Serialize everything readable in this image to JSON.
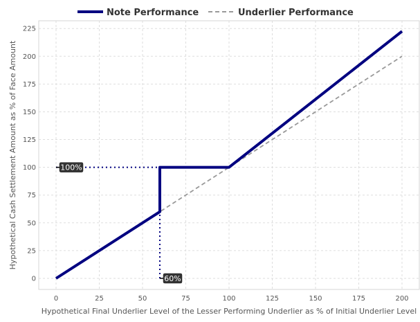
{
  "chart_data": {
    "type": "line",
    "xlabel": "Hypothetical Final Underlier Level of the Lesser Performing Underlier as % of Initial Underlier Level",
    "ylabel": "Hypothetical Cash Settlement Amount as % of Face Amount",
    "xlim": [
      -10,
      210
    ],
    "ylim": [
      -10,
      232
    ],
    "xticks": [
      0,
      25,
      50,
      75,
      100,
      125,
      150,
      175,
      200
    ],
    "yticks": [
      0,
      25,
      50,
      75,
      100,
      125,
      150,
      175,
      200,
      225
    ],
    "grid": true,
    "legend_position": "top-center",
    "series": [
      {
        "name": "Note Performance",
        "color": "#000080",
        "style": "solid",
        "points": [
          [
            0,
            0
          ],
          [
            60,
            60
          ],
          [
            60,
            100
          ],
          [
            100,
            100
          ],
          [
            200,
            222.5
          ]
        ]
      },
      {
        "name": "Underlier Performance",
        "color": "#999999",
        "style": "dashed",
        "points": [
          [
            0,
            0
          ],
          [
            200,
            200
          ]
        ]
      }
    ],
    "annotations": [
      {
        "text": "100%",
        "at": [
          0,
          100
        ],
        "guide": "horizontal",
        "guide_to": [
          60,
          100
        ]
      },
      {
        "text": "60%",
        "at": [
          60,
          0
        ],
        "guide": "vertical",
        "guide_to": [
          60,
          60
        ]
      }
    ]
  }
}
